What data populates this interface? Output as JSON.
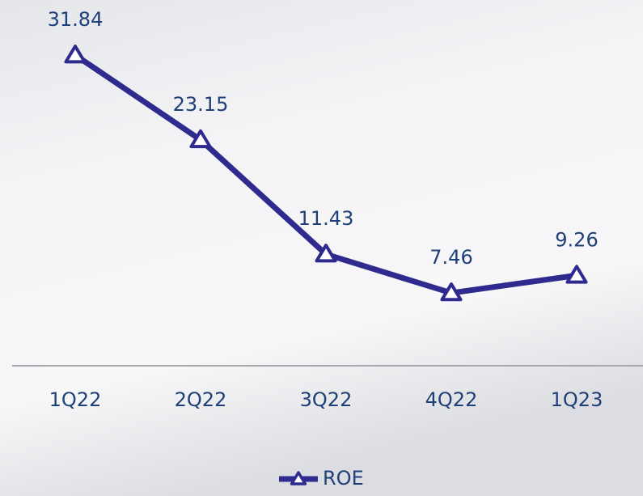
{
  "chart_data": {
    "type": "line",
    "categories": [
      "1Q22",
      "2Q22",
      "3Q22",
      "4Q22",
      "1Q23"
    ],
    "series": [
      {
        "name": "ROE",
        "color": "#2f2a8e",
        "values": [
          31.84,
          23.15,
          11.43,
          7.46,
          9.26
        ]
      }
    ],
    "ylim": [
      0,
      35
    ],
    "legend": "bottom"
  }
}
